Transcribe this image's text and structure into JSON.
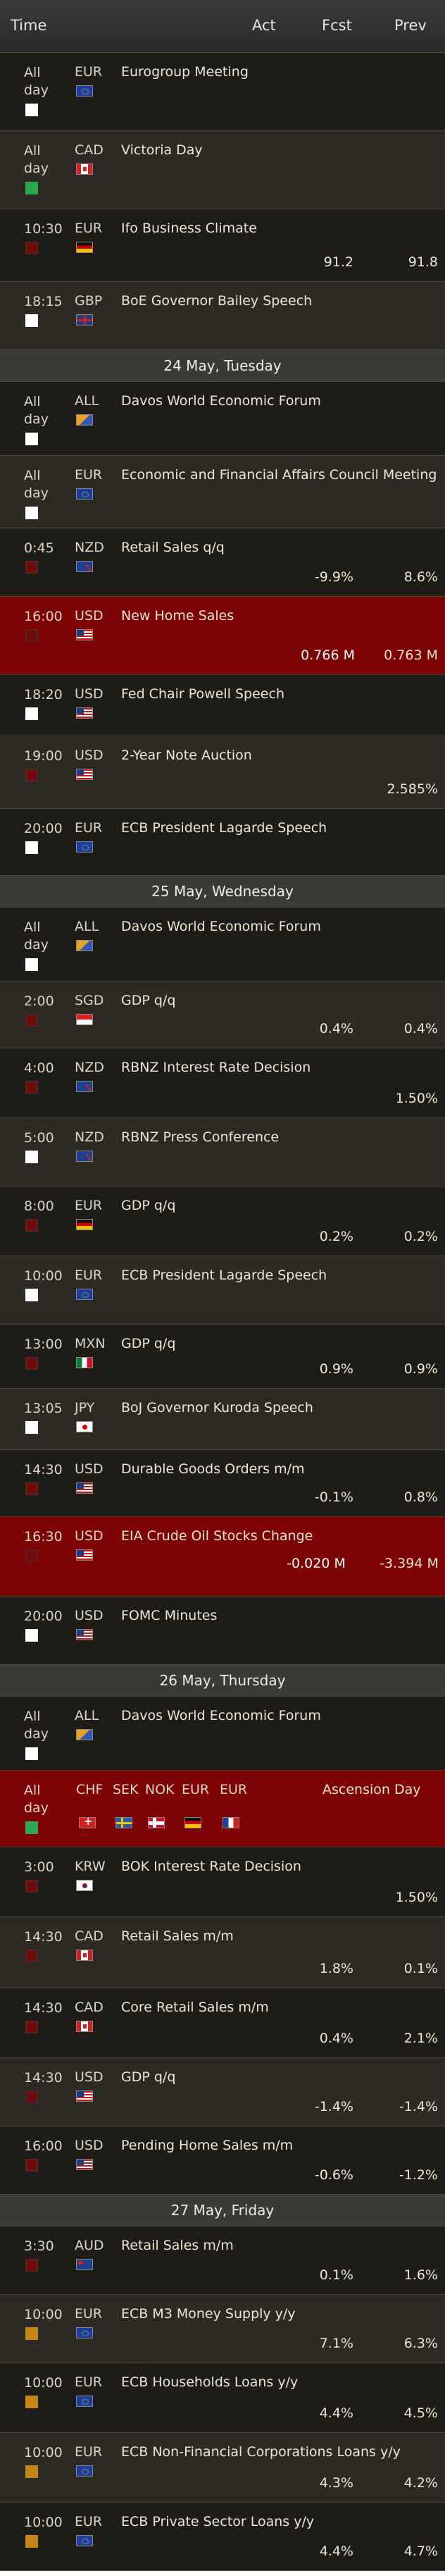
{
  "header": {
    "time": "Time",
    "act": "Act",
    "fcst": "Fcst",
    "prev": "Prev"
  },
  "rows": [
    {
      "kind": "event",
      "time": "All day",
      "cur": "EUR",
      "flag": "eur",
      "imp": "white",
      "name": "Eurogroup Meeting",
      "act": "",
      "fcst": "",
      "prev": "",
      "bg": "dark"
    },
    {
      "kind": "event",
      "time": "All day",
      "cur": "CAD",
      "flag": "cad",
      "imp": "green",
      "name": "Victoria Day",
      "act": "",
      "fcst": "",
      "prev": "",
      "bg": "light"
    },
    {
      "kind": "event",
      "time": "10:30",
      "cur": "EUR",
      "flag": "de",
      "imp": "red",
      "name": "Ifo Business Climate",
      "act": "",
      "fcst": "91.2",
      "prev": "91.8",
      "bg": "dark"
    },
    {
      "kind": "event",
      "time": "18:15",
      "cur": "GBP",
      "flag": "gb",
      "imp": "white",
      "name": "BoE Governor Bailey Speech",
      "act": "",
      "fcst": "",
      "prev": "",
      "bg": "light"
    },
    {
      "kind": "date",
      "label": "24 May, Tuesday"
    },
    {
      "kind": "event",
      "time": "All day",
      "cur": "ALL",
      "flag": "all",
      "imp": "white",
      "name": "Davos World Economic Forum",
      "act": "",
      "fcst": "",
      "prev": "",
      "bg": "dark"
    },
    {
      "kind": "event",
      "time": "All day",
      "cur": "EUR",
      "flag": "eur",
      "imp": "white",
      "name": "Economic and Financial Affairs Council Meeting",
      "act": "",
      "fcst": "",
      "prev": "",
      "bg": "light"
    },
    {
      "kind": "event",
      "time": "0:45",
      "cur": "NZD",
      "flag": "nz",
      "imp": "red",
      "name": "Retail Sales q/q",
      "act": "",
      "fcst": "-9.9%",
      "prev": "8.6%",
      "bg": "dark"
    },
    {
      "kind": "event",
      "time": "16:00",
      "cur": "USD",
      "flag": "us",
      "imp": "red",
      "name": "New Home Sales",
      "act": "0.766 M",
      "fcst": "",
      "prev": "0.763 M",
      "bg": "red"
    },
    {
      "kind": "event",
      "time": "18:20",
      "cur": "USD",
      "flag": "us",
      "imp": "white",
      "name": "Fed Chair Powell Speech",
      "act": "",
      "fcst": "",
      "prev": "",
      "bg": "dark"
    },
    {
      "kind": "event",
      "time": "19:00",
      "cur": "USD",
      "flag": "us",
      "imp": "red",
      "name": "2-Year Note Auction",
      "act": "",
      "fcst": "",
      "prev": "2.585%",
      "bg": "light"
    },
    {
      "kind": "event",
      "time": "20:00",
      "cur": "EUR",
      "flag": "eur",
      "imp": "white",
      "name": "ECB President Lagarde Speech",
      "act": "",
      "fcst": "",
      "prev": "",
      "bg": "dark"
    },
    {
      "kind": "date",
      "label": "25 May, Wednesday"
    },
    {
      "kind": "event",
      "time": "All day",
      "cur": "ALL",
      "flag": "all",
      "imp": "white",
      "name": "Davos World Economic Forum",
      "act": "",
      "fcst": "",
      "prev": "",
      "bg": "dark"
    },
    {
      "kind": "event",
      "time": "2:00",
      "cur": "SGD",
      "flag": "sg",
      "imp": "red",
      "name": "GDP q/q",
      "act": "",
      "fcst": "0.4%",
      "prev": "0.4%",
      "bg": "light"
    },
    {
      "kind": "event",
      "time": "4:00",
      "cur": "NZD",
      "flag": "nz",
      "imp": "red",
      "name": "RBNZ Interest Rate Decision",
      "act": "",
      "fcst": "",
      "prev": "1.50%",
      "bg": "dark"
    },
    {
      "kind": "event",
      "time": "5:00",
      "cur": "NZD",
      "flag": "nz",
      "imp": "white",
      "name": "RBNZ Press Conference",
      "act": "",
      "fcst": "",
      "prev": "",
      "bg": "light"
    },
    {
      "kind": "event",
      "time": "8:00",
      "cur": "EUR",
      "flag": "de",
      "imp": "red",
      "name": "GDP q/q",
      "act": "",
      "fcst": "0.2%",
      "prev": "0.2%",
      "bg": "dark"
    },
    {
      "kind": "event",
      "time": "10:00",
      "cur": "EUR",
      "flag": "eur",
      "imp": "white",
      "name": "ECB President Lagarde Speech",
      "act": "",
      "fcst": "",
      "prev": "",
      "bg": "light"
    },
    {
      "kind": "event",
      "time": "13:00",
      "cur": "MXN",
      "flag": "mx",
      "imp": "red",
      "name": "GDP q/q",
      "act": "",
      "fcst": "0.9%",
      "prev": "0.9%",
      "bg": "dark"
    },
    {
      "kind": "event",
      "time": "13:05",
      "cur": "JPY",
      "flag": "jp",
      "imp": "white",
      "name": "BoJ Governor Kuroda Speech",
      "act": "",
      "fcst": "",
      "prev": "",
      "bg": "light"
    },
    {
      "kind": "event",
      "time": "14:30",
      "cur": "USD",
      "flag": "us",
      "imp": "red",
      "name": "Durable Goods Orders m/m",
      "act": "",
      "fcst": "-0.1%",
      "prev": "0.8%",
      "bg": "dark"
    },
    {
      "kind": "event",
      "time": "16:30",
      "cur": "USD",
      "flag": "us",
      "imp": "red",
      "name": "EIA Crude Oil Stocks Change",
      "act": "-0.020 M",
      "fcst": "",
      "prev": "-3.394 M",
      "bg": "red"
    },
    {
      "kind": "event",
      "time": "20:00",
      "cur": "USD",
      "flag": "us",
      "imp": "white",
      "name": "FOMC Minutes",
      "act": "",
      "fcst": "",
      "prev": "",
      "bg": "dark"
    },
    {
      "kind": "date",
      "label": "26 May, Thursday"
    },
    {
      "kind": "event",
      "time": "All day",
      "cur": "ALL",
      "flag": "all",
      "imp": "white",
      "name": "Davos World Economic Forum",
      "act": "",
      "fcst": "",
      "prev": "",
      "bg": "dark"
    },
    {
      "kind": "holiday",
      "time": "All day",
      "imp": "green",
      "curs": [
        "CHF",
        "SEK",
        "NOK",
        "EUR",
        "EUR"
      ],
      "flags": [
        "ch",
        "se",
        "no",
        "de",
        "fr"
      ],
      "name": "Ascension Day",
      "bg": "red"
    },
    {
      "kind": "event",
      "time": "3:00",
      "cur": "KRW",
      "flag": "kr",
      "imp": "red",
      "name": "BOK Interest Rate Decision",
      "act": "",
      "fcst": "",
      "prev": "1.50%",
      "bg": "dark"
    },
    {
      "kind": "event",
      "time": "14:30",
      "cur": "CAD",
      "flag": "cad",
      "imp": "red",
      "name": "Retail Sales m/m",
      "act": "",
      "fcst": "1.8%",
      "prev": "0.1%",
      "bg": "light"
    },
    {
      "kind": "event",
      "time": "14:30",
      "cur": "CAD",
      "flag": "cad",
      "imp": "red",
      "name": "Core Retail Sales m/m",
      "act": "",
      "fcst": "0.4%",
      "prev": "2.1%",
      "bg": "dark"
    },
    {
      "kind": "event",
      "time": "14:30",
      "cur": "USD",
      "flag": "us",
      "imp": "red",
      "name": "GDP q/q",
      "act": "",
      "fcst": "-1.4%",
      "prev": "-1.4%",
      "bg": "light"
    },
    {
      "kind": "event",
      "time": "16:00",
      "cur": "USD",
      "flag": "us",
      "imp": "red",
      "name": "Pending Home Sales m/m",
      "act": "",
      "fcst": "-0.6%",
      "prev": "-1.2%",
      "bg": "dark"
    },
    {
      "kind": "date",
      "label": "27 May, Friday"
    },
    {
      "kind": "event",
      "time": "3:30",
      "cur": "AUD",
      "flag": "au",
      "imp": "red",
      "name": "Retail Sales m/m",
      "act": "",
      "fcst": "0.1%",
      "prev": "1.6%",
      "bg": "dark"
    },
    {
      "kind": "event",
      "time": "10:00",
      "cur": "EUR",
      "flag": "eur",
      "imp": "orange",
      "name": "ECB M3 Money Supply y/y",
      "act": "",
      "fcst": "7.1%",
      "prev": "6.3%",
      "bg": "light"
    },
    {
      "kind": "event",
      "time": "10:00",
      "cur": "EUR",
      "flag": "eur",
      "imp": "orange",
      "name": "ECB Households Loans y/y",
      "act": "",
      "fcst": "4.4%",
      "prev": "4.5%",
      "bg": "dark"
    },
    {
      "kind": "event",
      "time": "10:00",
      "cur": "EUR",
      "flag": "eur",
      "imp": "orange",
      "name": "ECB Non-Financial Corporations Loans y/y",
      "act": "",
      "fcst": "4.3%",
      "prev": "4.2%",
      "bg": "light"
    },
    {
      "kind": "event",
      "time": "10:00",
      "cur": "EUR",
      "flag": "eur",
      "imp": "orange",
      "name": "ECB Private Sector Loans y/y",
      "act": "",
      "fcst": "4.4%",
      "prev": "4.7%",
      "bg": "dark"
    }
  ]
}
